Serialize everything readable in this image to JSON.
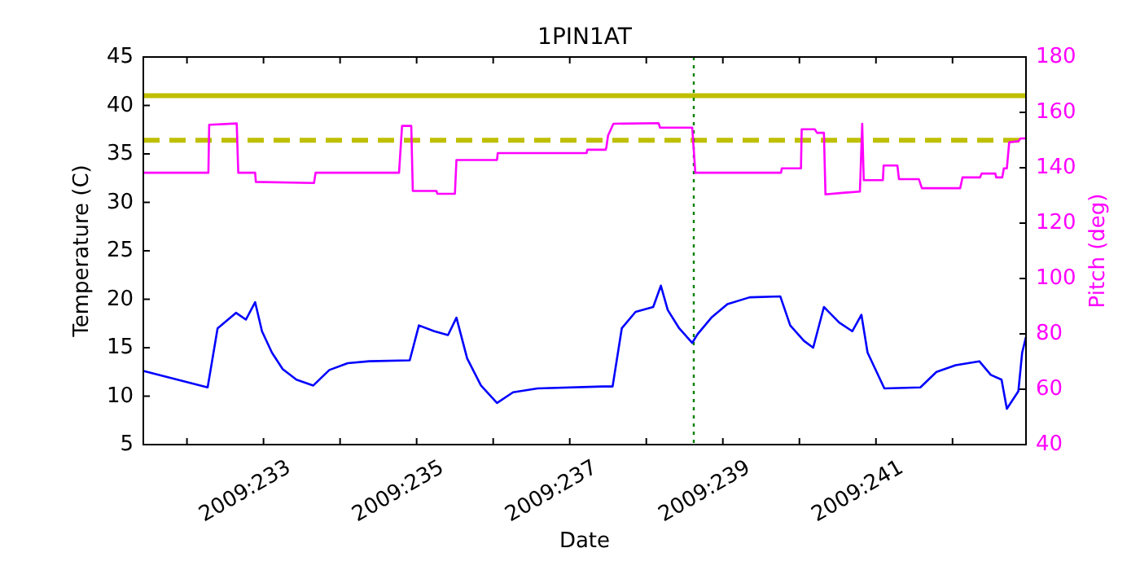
{
  "chart_data": {
    "type": "line",
    "title": "1PIN1AT",
    "xlabel": "Date",
    "ylabel": "Temperature (C)",
    "y2label": "Pitch (deg)",
    "xlim": [
      "2009-08-19T10:19",
      "2009-08-30T23:02"
    ],
    "xticks": [
      {
        "value": "2009-08-20",
        "label": null
      },
      {
        "value": "2009-08-21",
        "label": "2009:233"
      },
      {
        "value": "2009-08-22",
        "label": null
      },
      {
        "value": "2009-08-23",
        "label": "2009:235"
      },
      {
        "value": "2009-08-24",
        "label": null
      },
      {
        "value": "2009-08-25",
        "label": "2009:237"
      },
      {
        "value": "2009-08-26",
        "label": null
      },
      {
        "value": "2009-08-27",
        "label": "2009:239"
      },
      {
        "value": "2009-08-28",
        "label": null
      },
      {
        "value": "2009-08-29",
        "label": "2009:241"
      },
      {
        "value": "2009-08-30",
        "label": null
      }
    ],
    "ylim": [
      5,
      45
    ],
    "yticks": [
      5,
      10,
      15,
      20,
      25,
      30,
      35,
      40,
      45
    ],
    "y2lim": [
      40,
      180
    ],
    "y2ticks": [
      40,
      60,
      80,
      100,
      120,
      140,
      160,
      180
    ],
    "grid": false,
    "marker": "none",
    "series": [
      {
        "color": "#0000ff",
        "x": [
          "2009-08-19T10:19",
          "2009-08-20T06:29",
          "2009-08-20T09:36",
          "2009-08-20T15:22",
          "2009-08-20T18:29",
          "2009-08-20T21:22",
          "2009-08-20T23:31",
          "2009-08-21T02:38",
          "2009-08-21T06:00",
          "2009-08-21T10:19",
          "2009-08-21T15:36",
          "2009-08-21T20:38",
          "2009-08-22T02:24",
          "2009-08-22T09:07",
          "2009-08-22T21:50",
          "2009-08-23T00:43",
          "2009-08-23T05:31",
          "2009-08-23T09:50",
          "2009-08-23T12:29",
          "2009-08-23T15:50",
          "2009-08-23T20:10",
          "2009-08-24T01:12",
          "2009-08-24T06:14",
          "2009-08-24T13:55",
          "2009-08-25T10:19",
          "2009-08-25T13:26",
          "2009-08-25T16:19",
          "2009-08-25T20:38",
          "2009-08-26T02:10",
          "2009-08-26T04:34",
          "2009-08-26T06:43",
          "2009-08-26T10:19",
          "2009-08-26T14:24",
          "2009-08-26T16:05",
          "2009-08-26T20:24",
          "2009-08-27T01:26",
          "2009-08-27T08:24",
          "2009-08-27T18:00",
          "2009-08-27T21:07",
          "2009-08-28T01:26",
          "2009-08-28T04:19",
          "2009-08-28T07:41",
          "2009-08-28T12:29",
          "2009-08-28T16:34",
          "2009-08-28T19:26",
          "2009-08-28T21:22",
          "2009-08-29T02:38",
          "2009-08-29T13:55",
          "2009-08-29T18:58",
          "2009-08-30T00:58",
          "2009-08-30T08:24",
          "2009-08-30T12:00",
          "2009-08-30T15:22",
          "2009-08-30T17:02",
          "2009-08-30T20:38",
          "2009-08-30T21:50",
          "2009-08-30T23:02"
        ],
        "values": [
          12.6,
          10.9,
          17.0,
          18.6,
          17.9,
          19.7,
          16.7,
          14.5,
          12.8,
          11.7,
          11.1,
          12.7,
          13.4,
          13.6,
          13.7,
          17.3,
          16.7,
          16.3,
          18.1,
          13.9,
          11.1,
          9.3,
          10.4,
          10.8,
          11.0,
          11.0,
          17.0,
          18.7,
          19.2,
          21.4,
          18.9,
          17.0,
          15.5,
          16.4,
          18.1,
          19.5,
          20.2,
          20.3,
          17.3,
          15.7,
          15.0,
          19.2,
          17.6,
          16.7,
          18.4,
          14.5,
          10.8,
          10.9,
          12.5,
          13.2,
          13.6,
          12.2,
          11.7,
          8.7,
          10.5,
          14.5,
          16.1
        ]
      },
      {
        "color": "#ff00ff",
        "axis": "y2",
        "x": [
          "2009-08-19T10:34",
          "2009-08-20T06:43",
          "2009-08-20T06:58",
          "2009-08-20T15:36",
          "2009-08-20T16:05",
          "2009-08-20T21:22",
          "2009-08-20T21:36",
          "2009-08-21T15:50",
          "2009-08-21T16:19",
          "2009-08-22T18:29",
          "2009-08-22T19:26",
          "2009-08-22T22:19",
          "2009-08-22T22:48",
          "2009-08-23T06:14",
          "2009-08-23T06:29",
          "2009-08-23T12:00",
          "2009-08-23T12:29",
          "2009-08-24T01:12",
          "2009-08-24T01:26",
          "2009-08-25T05:17",
          "2009-08-25T05:31",
          "2009-08-25T11:17",
          "2009-08-25T11:31",
          "2009-08-25T12:00",
          "2009-08-25T13:41",
          "2009-08-26T03:50",
          "2009-08-26T04:19",
          "2009-08-26T14:24",
          "2009-08-26T15:22",
          "2009-08-27T18:14",
          "2009-08-27T18:29",
          "2009-08-28T00:29",
          "2009-08-28T00:43",
          "2009-08-28T04:48",
          "2009-08-28T05:31",
          "2009-08-28T07:41",
          "2009-08-28T08:10",
          "2009-08-28T14:10",
          "2009-08-28T18:58",
          "2009-08-28T19:41",
          "2009-08-28T20:10",
          "2009-08-29T02:10",
          "2009-08-29T02:24",
          "2009-08-29T06:43",
          "2009-08-29T07:12",
          "2009-08-29T13:26",
          "2009-08-29T14:24",
          "2009-08-30T02:24",
          "2009-08-30T03:07",
          "2009-08-30T08:38",
          "2009-08-30T09:07",
          "2009-08-30T13:26",
          "2009-08-30T13:41",
          "2009-08-30T15:36",
          "2009-08-30T16:05",
          "2009-08-30T17:02",
          "2009-08-30T17:46",
          "2009-08-30T20:38",
          "2009-08-30T21:22",
          "2009-08-30T23:02"
        ],
        "values": [
          138.2,
          138.2,
          155.5,
          156,
          138.2,
          138.2,
          134.9,
          134.5,
          138.2,
          138.2,
          155.1,
          155.1,
          131.6,
          131.6,
          130.6,
          130.6,
          142.8,
          142.8,
          145.3,
          145.3,
          146.5,
          146.5,
          147.6,
          151.6,
          155.9,
          156.1,
          154.5,
          154.5,
          138.2,
          138.2,
          139.8,
          139.8,
          153.9,
          153.9,
          152.6,
          152.6,
          130.4,
          131,
          131.4,
          155.9,
          135.5,
          135.5,
          140.8,
          140.8,
          135.9,
          135.9,
          132.6,
          132.6,
          136.5,
          136.5,
          137.9,
          137.9,
          136.5,
          136.5,
          139.8,
          139.8,
          149.2,
          149.6,
          150.6,
          150.6
        ]
      }
    ],
    "ref_lines": [
      {
        "axis": "y",
        "value": 41,
        "color": "#bfbf00",
        "line_style": "solid"
      },
      {
        "axis": "y",
        "value": 36.4,
        "color": "#bfbf00",
        "line_style": "dashed"
      },
      {
        "axis": "x",
        "value": "2009-08-26T14:53",
        "color": "#008000",
        "line_style": "dotted"
      }
    ]
  }
}
